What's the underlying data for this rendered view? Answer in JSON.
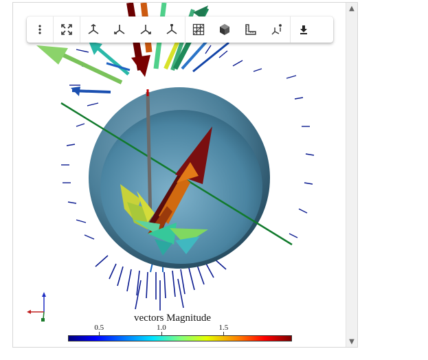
{
  "toolbar": {
    "items": [
      {
        "name": "more-options-icon"
      },
      {
        "name": "fullscreen-icon"
      },
      {
        "name": "axis-view-1-icon"
      },
      {
        "name": "axis-view-2-icon"
      },
      {
        "name": "axis-view-3-icon"
      },
      {
        "name": "axis-view-4-icon"
      },
      {
        "name": "grid-icon"
      },
      {
        "name": "cube-icon"
      },
      {
        "name": "ruler-icon"
      },
      {
        "name": "axes-info-icon"
      },
      {
        "name": "download-icon"
      }
    ]
  },
  "colorbar": {
    "title": "vectors Magnitude",
    "ticks": [
      "0.5",
      "1.0",
      "1.5"
    ],
    "tick_values": [
      0.5,
      1.0,
      1.5
    ],
    "range": [
      0.25,
      2.05
    ],
    "colormap": "jet"
  },
  "colors": {
    "sphere_outer": "#5a87a0",
    "sphere_inner": "#3f6f8a",
    "line": "#117a2c"
  }
}
